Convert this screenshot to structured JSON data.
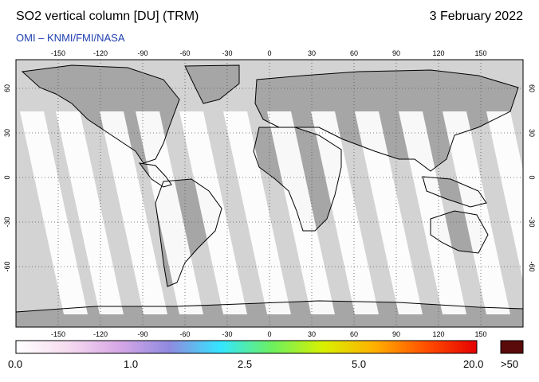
{
  "header": {
    "title": "SO2 vertical column [DU] (TRM)",
    "date": "3 February 2022",
    "credit": "OMI  –  KNMI/FMI/NASA"
  },
  "map": {
    "lon_ticks": [
      "-150",
      "-120",
      "-90",
      "-60",
      "-30",
      "0",
      "30",
      "60",
      "90",
      "120",
      "150"
    ],
    "lat_ticks": [
      "60",
      "30",
      "0",
      "-30",
      "-60"
    ],
    "colors": {
      "land": "#a6a6a6",
      "ocean_nodata": "#d3d3d3",
      "swath": "#ffffff",
      "coast": "#000000"
    }
  },
  "colorbar": {
    "labels": [
      "0.0",
      "1.0",
      "2.5",
      "5.0",
      "20.0"
    ],
    "overflow_label": ">50",
    "overflow_color": "#5a0a0a",
    "gradient": [
      "#ffffff",
      "#f6dcf0",
      "#d8a8e6",
      "#8f8ae0",
      "#33e6ff",
      "#6cf060",
      "#d8f000",
      "#ffb000",
      "#ff5000",
      "#e60000"
    ]
  }
}
